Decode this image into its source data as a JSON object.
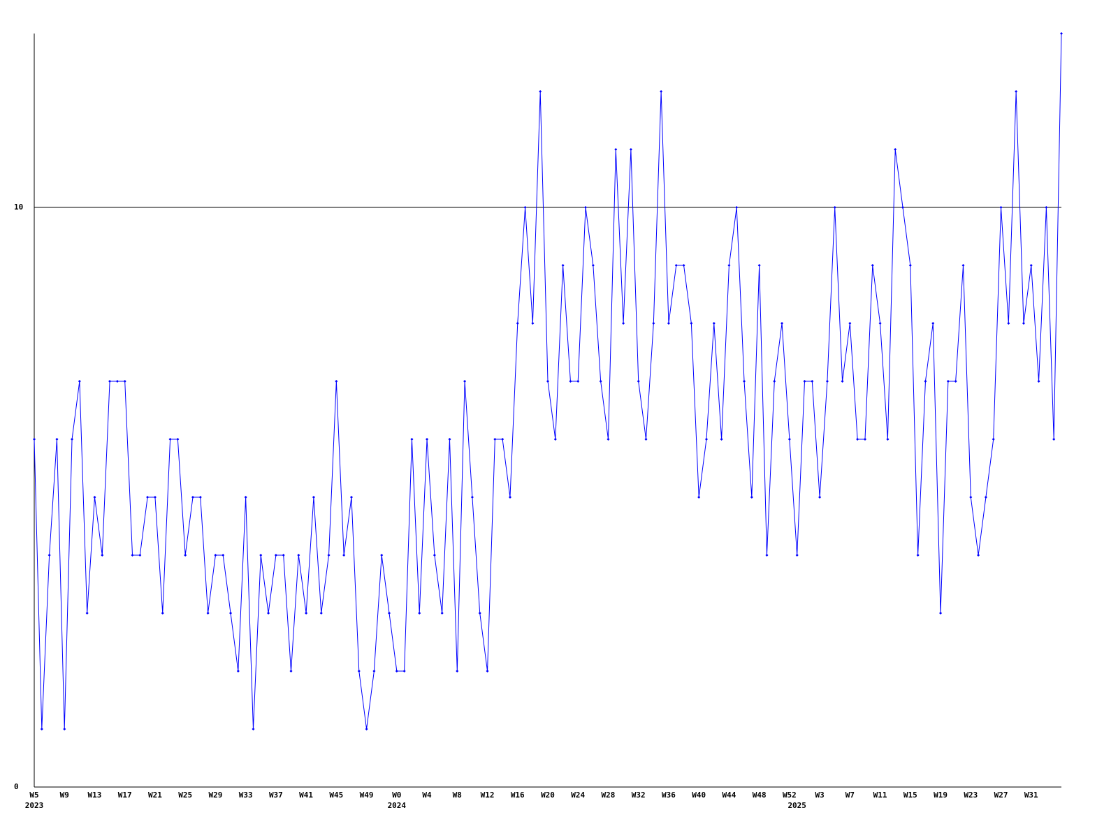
{
  "chart_data": {
    "type": "line",
    "categories": [
      "W5",
      null,
      null,
      null,
      "W9",
      null,
      null,
      null,
      "W13",
      null,
      null,
      null,
      "W17",
      null,
      null,
      null,
      "W21",
      null,
      null,
      null,
      "W25",
      null,
      null,
      null,
      "W29",
      null,
      null,
      null,
      "W33",
      null,
      null,
      null,
      "W37",
      null,
      null,
      null,
      "W41",
      null,
      null,
      null,
      "W45",
      null,
      null,
      null,
      "W49",
      null,
      null,
      null,
      "W0",
      null,
      null,
      null,
      "W4",
      null,
      null,
      null,
      "W8",
      null,
      null,
      null,
      "W12",
      null,
      null,
      null,
      "W16",
      null,
      null,
      null,
      "W20",
      null,
      null,
      null,
      "W24",
      null,
      null,
      null,
      "W28",
      null,
      null,
      null,
      "W32",
      null,
      null,
      null,
      "W36",
      null,
      null,
      null,
      "W40",
      null,
      null,
      null,
      "W44",
      null,
      null,
      null,
      "W48",
      null,
      null,
      null,
      "W52",
      null,
      null,
      null,
      "W3",
      null,
      null,
      null,
      "W7",
      null,
      null,
      null,
      "W11",
      null,
      null,
      null,
      "W15",
      null,
      null,
      null,
      "W19",
      null,
      null,
      null,
      "W23",
      null,
      null,
      null,
      "W27",
      null,
      null,
      null,
      "W31",
      null,
      null,
      null,
      null
    ],
    "years": [
      "2023",
      null,
      null,
      null,
      null,
      null,
      null,
      null,
      null,
      null,
      null,
      null,
      null,
      null,
      null,
      null,
      null,
      null,
      null,
      null,
      null,
      null,
      null,
      null,
      null,
      null,
      null,
      null,
      null,
      null,
      null,
      null,
      null,
      null,
      null,
      null,
      null,
      null,
      null,
      null,
      null,
      null,
      null,
      null,
      null,
      null,
      null,
      null,
      "2024",
      null,
      null,
      null,
      null,
      null,
      null,
      null,
      null,
      null,
      null,
      null,
      null,
      null,
      null,
      null,
      null,
      null,
      null,
      null,
      null,
      null,
      null,
      null,
      null,
      null,
      null,
      null,
      null,
      null,
      null,
      null,
      null,
      null,
      null,
      null,
      null,
      null,
      null,
      null,
      null,
      null,
      null,
      null,
      null,
      null,
      null,
      null,
      null,
      null,
      null,
      null,
      null,
      "2025",
      null,
      null,
      null,
      null,
      null,
      null,
      null,
      null,
      null,
      null,
      null,
      null,
      null,
      null,
      null,
      null,
      null,
      null,
      null,
      null,
      null,
      null,
      null,
      null,
      null,
      null,
      null,
      null,
      null,
      null,
      null,
      null,
      null,
      null,
      null
    ],
    "series": [
      {
        "color": "#0000ff",
        "values": [
          6,
          1,
          4,
          6,
          1,
          6,
          7,
          3,
          5,
          4,
          7,
          7,
          7,
          4,
          4,
          5,
          5,
          3,
          6,
          6,
          4,
          5,
          5,
          3,
          4,
          4,
          3,
          2,
          5,
          1,
          4,
          3,
          4,
          4,
          2,
          4,
          3,
          5,
          3,
          4,
          7,
          4,
          5,
          2,
          1,
          2,
          4,
          3,
          2,
          2,
          6,
          3,
          6,
          4,
          3,
          6,
          2,
          7,
          5,
          3,
          2,
          6,
          6,
          5,
          8,
          10,
          8,
          12,
          7,
          6,
          9,
          7,
          7,
          10,
          9,
          7,
          6,
          11,
          8,
          11,
          7,
          6,
          8,
          12,
          8,
          9,
          9,
          8,
          5,
          6,
          8,
          6,
          9,
          10,
          7,
          5,
          9,
          4,
          7,
          8,
          6,
          4,
          7,
          7,
          5,
          7,
          10,
          7,
          8,
          6,
          6,
          9,
          8,
          6,
          11,
          10,
          9,
          4,
          7,
          8,
          3,
          7,
          7,
          9,
          5,
          4,
          5,
          6,
          10,
          8,
          12,
          8,
          9,
          7,
          10,
          6,
          13
        ]
      }
    ],
    "ylim": [
      0,
      13
    ],
    "yticks": [
      0,
      10
    ],
    "grid": true
  }
}
